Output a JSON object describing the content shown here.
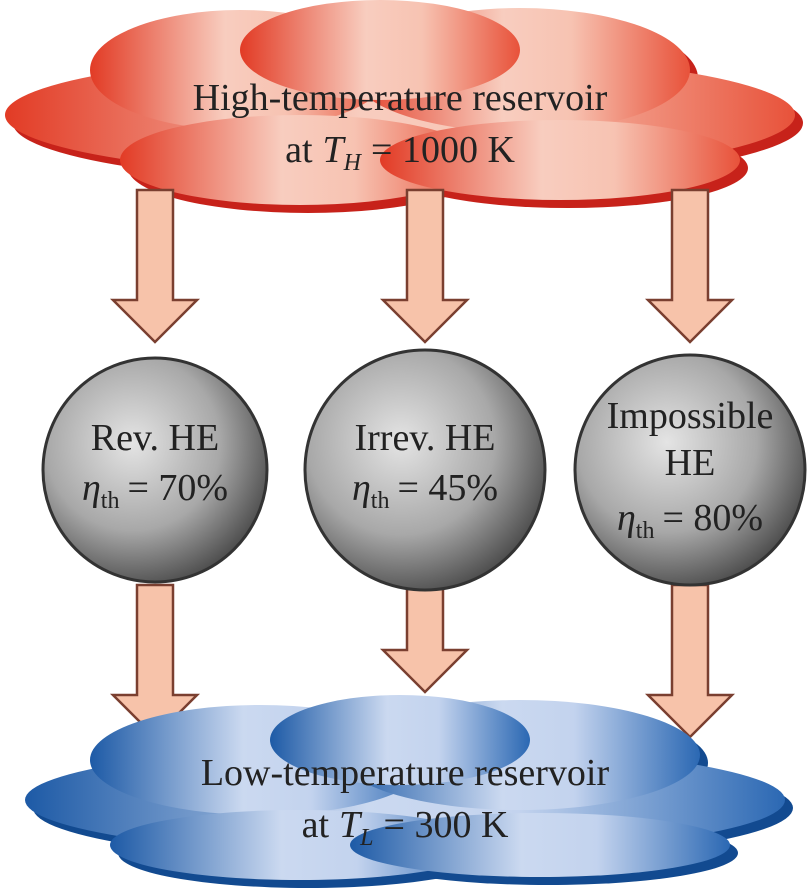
{
  "hot_reservoir": {
    "line1": "High-temperature reservoir",
    "line2": {
      "prefix": "at",
      "symbol": "T",
      "subscript": "H",
      "rest": "= 1000 K"
    }
  },
  "engines": [
    {
      "lines": [
        "Rev. HE"
      ],
      "efficiency": {
        "symbol": "η",
        "subscript": "th",
        "rest": "= 70%"
      }
    },
    {
      "lines": [
        "Irrev. HE"
      ],
      "efficiency": {
        "symbol": "η",
        "subscript": "th",
        "rest": "= 45%"
      }
    },
    {
      "lines": [
        "Impossible",
        "HE"
      ],
      "efficiency": {
        "symbol": "η",
        "subscript": "th",
        "rest": "= 80%"
      }
    }
  ],
  "cold_reservoir": {
    "line1": "Low-temperature reservoir",
    "line2": {
      "prefix": "at",
      "symbol": "T",
      "subscript": "L",
      "rest": "= 300 K"
    }
  }
}
